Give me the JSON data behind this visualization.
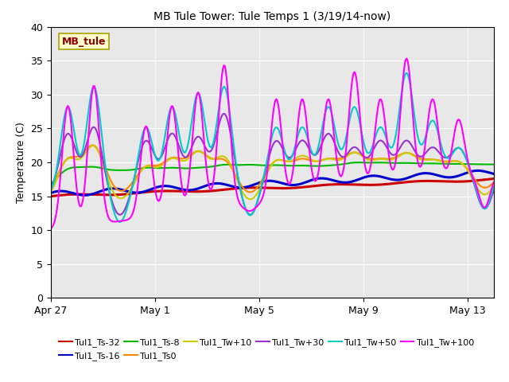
{
  "title": "MB Tule Tower: Tule Temps 1 (3/19/14-now)",
  "ylabel": "Temperature (C)",
  "ylim": [
    0,
    40
  ],
  "yticks": [
    0,
    5,
    10,
    15,
    20,
    25,
    30,
    35,
    40
  ],
  "plot_bg": "#e8e8e8",
  "series": [
    {
      "label": "Tul1_Ts-32",
      "color": "#cc0000"
    },
    {
      "label": "Tul1_Ts-16",
      "color": "#0000cc"
    },
    {
      "label": "Tul1_Ts-8",
      "color": "#00bb00"
    },
    {
      "label": "Tul1_Ts0",
      "color": "#ff8800"
    },
    {
      "label": "Tul1_Tw+10",
      "color": "#cccc00"
    },
    {
      "label": "Tul1_Tw+30",
      "color": "#9933cc"
    },
    {
      "label": "Tul1_Tw+50",
      "color": "#00cccc"
    },
    {
      "label": "Tul1_Tw+100",
      "color": "#ff00ff"
    }
  ],
  "xtick_labels": [
    "Apr 27",
    "May 1",
    "May 5",
    "May 9",
    "May 13"
  ],
  "xtick_positions": [
    0,
    4,
    8,
    12,
    16
  ],
  "watermark": "MB_tule",
  "n_days": 17
}
